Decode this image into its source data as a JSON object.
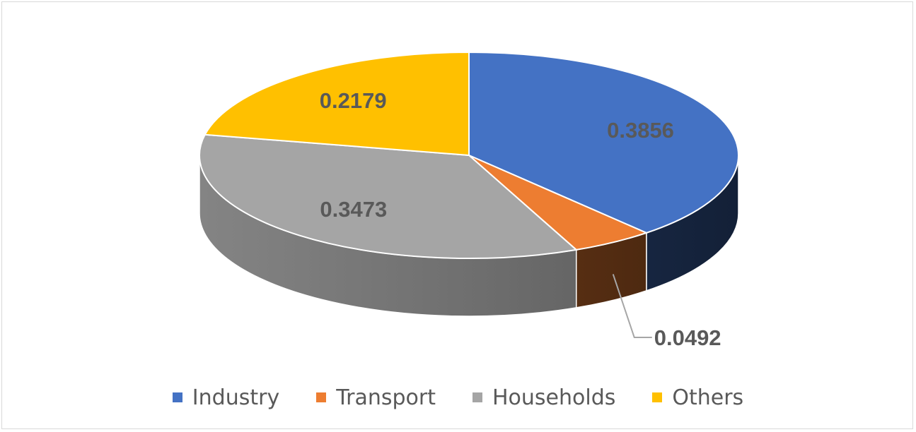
{
  "chart_data": {
    "type": "pie",
    "style": "3d",
    "title": "",
    "categories": [
      "Industry",
      "Transport",
      "Households",
      "Others"
    ],
    "values": [
      0.3856,
      0.0492,
      0.3473,
      0.2179
    ],
    "labels": [
      "0.3856",
      "0.0492",
      "0.3473",
      "0.2179"
    ],
    "colors": [
      "#4472c4",
      "#ed7d31",
      "#a5a5a5",
      "#ffc000"
    ],
    "legend_position": "bottom",
    "start_angle_deg": 0,
    "direction": "clockwise"
  }
}
